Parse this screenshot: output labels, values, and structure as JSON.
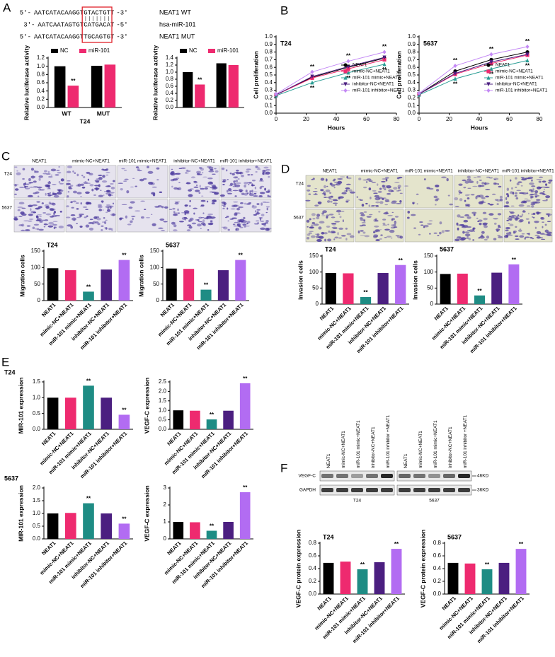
{
  "panel_labels": [
    "A",
    "B",
    "C",
    "D",
    "E",
    "F"
  ],
  "sequences": [
    {
      "left": "5'-",
      "pre": "AATCATACAAGGT",
      "site": "GTACTGT",
      "post": "T",
      "right": "-3'",
      "name": "NEAT1 WT"
    },
    {
      "left": "3'-",
      "pre": "AATCAATAGTGT",
      "site": "CATGACA",
      "post": "T",
      "right": "-5'",
      "name": "hsa-miR-101"
    },
    {
      "left": "5'-",
      "pre": "AATCATACAAGGT",
      "site": "TGCAGTG",
      "post": "T",
      "right": "-3'",
      "name": "NEAT1 MUT"
    }
  ],
  "micrographs": [
    {
      "columns": [
        "NEAT1",
        "mimic-NC+NEAT1",
        "miR-101 mimic+NEAT1",
        "inhibitor-NC+NEAT1",
        "miR-101 inhibitor+NEAT1"
      ],
      "rows": [
        "T24",
        "5637"
      ]
    },
    {
      "columns": [
        "NEAT1",
        "mimic-NC+NEAT1",
        "miR-101 mimic+NEAT1",
        "inhibitor-NC+NEAT1",
        "miR-101 inhibitor+NEAT1"
      ],
      "rows": [
        "T24",
        "5637"
      ]
    }
  ],
  "blot": {
    "lanes": [
      "NEAT1",
      "mimic-NC+NEAT1",
      "miR-101 mimic+NEAT1",
      "inhibitor-NC+NEAT1",
      "miR-101 inhibitor +NEAT1"
    ],
    "groups": [
      "T24",
      "5637"
    ],
    "bands": [
      "VEGF-C",
      "GAPDH"
    ],
    "sizes": [
      "46KD",
      "36KD"
    ]
  },
  "chart_data": [
    {
      "type": "grouped-bar",
      "ylabel": "Relative luciferase activity",
      "xlabel": "T24",
      "categories": [
        "WT",
        "MUT"
      ],
      "series": [
        {
          "name": "NC",
          "color": "#000000",
          "values": [
            1.0,
            1.01
          ],
          "annotations": [
            null,
            null
          ]
        },
        {
          "name": "miR-101",
          "color": "#ee2a6f",
          "values": [
            0.53,
            1.04
          ],
          "annotations": [
            "**",
            null
          ]
        }
      ],
      "ylim": [
        0,
        1.2
      ],
      "yticks": [
        {
          "value": 0,
          "label": "0.0"
        },
        0.2,
        0.4,
        0.6,
        0.8,
        {
          "value": 1,
          "label": "1.0"
        },
        1.2
      ],
      "legend": "upper left"
    },
    {
      "type": "grouped-bar",
      "ylabel": "Relative luciferase activity",
      "categories": [
        null,
        null
      ],
      "series": [
        {
          "name": "NC",
          "color": "#000000",
          "values": [
            1.0,
            1.25
          ],
          "annotations": [
            null,
            null
          ]
        },
        {
          "name": "miR-101",
          "color": "#ee2a6f",
          "values": [
            0.65,
            1.2
          ],
          "annotations": [
            "**",
            null
          ]
        }
      ],
      "ylim": [
        0,
        1.4
      ],
      "yticks": [
        {
          "value": 0,
          "label": "0.0"
        },
        0.2,
        0.4,
        0.6,
        0.8,
        {
          "value": 1,
          "label": "1.0"
        },
        1.2,
        1.4
      ],
      "legend": "upper left"
    },
    {
      "type": "line",
      "title": "T24",
      "xlabel": "Hours",
      "ylabel": "Cell proliferation",
      "x": [
        0,
        24,
        48,
        72
      ],
      "series": [
        {
          "name": "NEAT1",
          "color": "#000000",
          "marker": "circle",
          "values": [
            0.24,
            0.47,
            0.6,
            0.72
          ],
          "annotations": [
            null,
            null,
            null,
            null
          ]
        },
        {
          "name": "mimic-NC+NEAT1",
          "color": "#ee2a6f",
          "marker": "square",
          "values": [
            0.24,
            0.46,
            0.58,
            0.7
          ],
          "annotations": [
            null,
            null,
            null,
            null
          ]
        },
        {
          "name": "miR-101 mimic+NEAT1",
          "color": "#2a9d94",
          "marker": "triangle",
          "values": [
            0.23,
            0.4,
            0.53,
            0.64
          ],
          "annotations": [
            null,
            "**",
            "**",
            "**"
          ]
        },
        {
          "name": "inhibitor-NC+NEAT1",
          "color": "#4b1f80",
          "marker": "triangle-down",
          "values": [
            0.24,
            0.48,
            0.61,
            0.73
          ],
          "annotations": [
            null,
            null,
            null,
            null
          ]
        },
        {
          "name": "miR-101 inhibitor+NEAT1",
          "color": "#c48af5",
          "marker": "diamond",
          "values": [
            0.25,
            0.54,
            0.68,
            0.8
          ],
          "annotations": [
            null,
            "**",
            "**",
            "**"
          ]
        }
      ],
      "xlim": [
        0,
        80
      ],
      "xticks": [
        0,
        20,
        40,
        60,
        80
      ],
      "ylim": [
        0,
        1
      ],
      "yticks": [
        {
          "value": 0,
          "label": "0.0"
        },
        0.1,
        0.2,
        0.3,
        0.4,
        0.5,
        0.6,
        0.7,
        0.8,
        0.9,
        {
          "value": 1,
          "label": "1.0"
        }
      ],
      "legend": "lower right"
    },
    {
      "type": "line",
      "title": "5637",
      "xlabel": "Hours",
      "ylabel": "Cell proliferation",
      "x": [
        0,
        24,
        48,
        72
      ],
      "series": [
        {
          "name": "NEAT1",
          "color": "#000000",
          "marker": "circle",
          "values": [
            0.25,
            0.55,
            0.7,
            0.8
          ],
          "annotations": [
            null,
            null,
            null,
            null
          ]
        },
        {
          "name": "mimic-NC+NEAT1",
          "color": "#ee2a6f",
          "marker": "square",
          "values": [
            0.25,
            0.51,
            0.65,
            0.76
          ],
          "annotations": [
            null,
            null,
            null,
            null
          ]
        },
        {
          "name": "miR-101 mimic+NEAT1",
          "color": "#2a9d94",
          "marker": "triangle",
          "values": [
            0.24,
            0.45,
            0.58,
            0.69
          ],
          "annotations": [
            null,
            "**",
            "**",
            "**"
          ]
        },
        {
          "name": "inhibitor-NC+NEAT1",
          "color": "#4b1f80",
          "marker": "triangle-down",
          "values": [
            0.25,
            0.52,
            0.67,
            0.77
          ],
          "annotations": [
            null,
            null,
            null,
            null
          ]
        },
        {
          "name": "miR-101 inhibitor+NEAT1",
          "color": "#c48af5",
          "marker": "diamond",
          "values": [
            0.26,
            0.62,
            0.77,
            0.87
          ],
          "annotations": [
            null,
            "**",
            "**",
            "**"
          ]
        }
      ],
      "xlim": [
        0,
        80
      ],
      "xticks": [
        0,
        20,
        40,
        60,
        80
      ],
      "ylim": [
        0,
        1
      ],
      "yticks": [
        {
          "value": 0,
          "label": "0.0"
        },
        0.1,
        0.2,
        0.3,
        0.4,
        0.5,
        0.6,
        0.7,
        0.8,
        0.9,
        {
          "value": 1,
          "label": "1.0"
        }
      ],
      "legend": "lower right"
    },
    {
      "type": "bar",
      "title": "T24",
      "ylabel": "Migration cells",
      "categories": [
        "NEAT1",
        "mimic-NC+NEAT1",
        "miR-101 mimic+NEAT1",
        "inhibitor-NC+NEAT1",
        "miR-101 inhibitor+NEAT1"
      ],
      "values": [
        98,
        92,
        27,
        94,
        123
      ],
      "colors": [
        "#000000",
        "#ee2a6f",
        "#1e8c84",
        "#4b1f80",
        "#b26cf2"
      ],
      "annotations": [
        null,
        null,
        "**",
        null,
        "**"
      ],
      "ylim": [
        0,
        150
      ],
      "yticks": [
        0,
        50,
        100,
        150
      ]
    },
    {
      "type": "bar",
      "title": "5637",
      "ylabel": "Migration cells",
      "categories": [
        "NEAT1",
        "mimic-NC+NEAT1",
        "miR-101 mimic+NEAT1",
        "inhibitor-NC+NEAT1",
        "miR-101 inhibitor+NEAT1"
      ],
      "values": [
        97,
        96,
        33,
        92,
        123
      ],
      "colors": [
        "#000000",
        "#ee2a6f",
        "#1e8c84",
        "#4b1f80",
        "#b26cf2"
      ],
      "annotations": [
        null,
        null,
        "**",
        null,
        "**"
      ],
      "ylim": [
        0,
        150
      ],
      "yticks": [
        0,
        50,
        100,
        150
      ]
    },
    {
      "type": "bar",
      "title": "T24",
      "ylabel": "Invasion cells",
      "categories": [
        "NEAT1",
        "mimic-NC+NEAT1",
        "miR-101 mimic+NEAT1",
        "inhibitor-NC+NEAT1",
        "miR-101 inhibitor+NEAT1"
      ],
      "values": [
        97,
        96,
        22,
        97,
        122
      ],
      "colors": [
        "#000000",
        "#ee2a6f",
        "#1e8c84",
        "#4b1f80",
        "#b26cf2"
      ],
      "annotations": [
        null,
        null,
        "**",
        null,
        "**"
      ],
      "ylim": [
        0,
        150
      ],
      "yticks": [
        0,
        50,
        100,
        150
      ]
    },
    {
      "type": "bar",
      "title": "5637",
      "ylabel": "Invasion cells",
      "categories": [
        "NEAT1",
        "mimic-NC+NEAT1",
        "miR-101 mimic+NEAT1",
        "inhibitor-NC+NEAT1",
        "miR-101 inhibitor+NEAT1"
      ],
      "values": [
        94,
        95,
        27,
        98,
        124
      ],
      "colors": [
        "#000000",
        "#ee2a6f",
        "#1e8c84",
        "#4b1f80",
        "#b26cf2"
      ],
      "annotations": [
        null,
        null,
        "**",
        null,
        "**"
      ],
      "ylim": [
        0,
        150
      ],
      "yticks": [
        0,
        50,
        100,
        150
      ]
    },
    {
      "type": "bar",
      "title": "T24",
      "ylabel": "MIR-101 expression",
      "categories": [
        "NEAT1",
        "mimic-NC+NEAT1",
        "miR-101 mimic+NEAT1",
        "inhibitor-NC+NEAT1",
        "miR-101 inhibitor+NEAT1"
      ],
      "values": [
        1.0,
        1.0,
        1.38,
        1.0,
        0.46
      ],
      "colors": [
        "#000000",
        "#ee2a6f",
        "#1e8c84",
        "#4b1f80",
        "#b26cf2"
      ],
      "annotations": [
        null,
        null,
        "**",
        null,
        "**"
      ],
      "ylim": [
        0,
        1.5
      ],
      "yticks": [
        {
          "value": 0,
          "label": "0.0"
        },
        0.5,
        {
          "value": 1,
          "label": "1.0"
        },
        1.5
      ]
    },
    {
      "type": "bar",
      "ylabel": "VEGF-C expression",
      "categories": [
        "NEAT1",
        "mimic-NC+NEAT1",
        "miR-101 mimic+NEAT1",
        "inhibitor-NC+NEAT1",
        "miR-101 inhibitor+NEAT1"
      ],
      "values": [
        1.0,
        0.98,
        0.52,
        0.98,
        2.43
      ],
      "colors": [
        "#000000",
        "#ee2a6f",
        "#1e8c84",
        "#4b1f80",
        "#b26cf2"
      ],
      "annotations": [
        null,
        null,
        "**",
        null,
        "**"
      ],
      "ylim": [
        0,
        2.5
      ],
      "yticks": [
        {
          "value": 0,
          "label": "0.0"
        },
        0.5,
        {
          "value": 1,
          "label": "1.0"
        },
        1.5,
        {
          "value": 2,
          "label": "2.0"
        },
        2.5
      ]
    },
    {
      "type": "bar",
      "title": "5637",
      "ylabel": "MIR-101 expression",
      "categories": [
        "NEAT1",
        "mimic-NC+NEAT1",
        "miR-101 mimic+NEAT1",
        "inhibitor-NC+NEAT1",
        "miR-101 inhibitor+NEAT1"
      ],
      "values": [
        1.0,
        1.02,
        1.4,
        1.0,
        0.6
      ],
      "colors": [
        "#000000",
        "#ee2a6f",
        "#1e8c84",
        "#4b1f80",
        "#b26cf2"
      ],
      "annotations": [
        null,
        null,
        "**",
        null,
        "**"
      ],
      "ylim": [
        0,
        2
      ],
      "yticks": [
        {
          "value": 0,
          "label": "0.0"
        },
        0.5,
        {
          "value": 1,
          "label": "1.0"
        },
        1.5,
        {
          "value": 2,
          "label": "2.0"
        }
      ]
    },
    {
      "type": "bar",
      "ylabel": "VEGF-C expression",
      "categories": [
        "NEAT1",
        "mimic-NC+NEAT1",
        "miR-101 mimic+NEAT1",
        "inhibitor-NC+NEAT1",
        "miR-101 inhibitor+NEAT1"
      ],
      "values": [
        1.0,
        0.98,
        0.48,
        1.0,
        2.75
      ],
      "colors": [
        "#000000",
        "#ee2a6f",
        "#1e8c84",
        "#4b1f80",
        "#b26cf2"
      ],
      "annotations": [
        null,
        null,
        "**",
        null,
        "**"
      ],
      "ylim": [
        0,
        3
      ],
      "yticks": [
        0,
        1,
        2,
        3
      ]
    },
    {
      "type": "bar",
      "title": "T24",
      "ylabel": "VEGF-C protein expression",
      "categories": [
        "NEAT1",
        "mimic-NC+NEAT1",
        "miR-101 mimic+NEAT1",
        "inhibitor-NC+NEAT1",
        "miR-101 inhibitor+NEAT1"
      ],
      "values": [
        0.49,
        0.51,
        0.39,
        0.5,
        0.71
      ],
      "colors": [
        "#000000",
        "#ee2a6f",
        "#1e8c84",
        "#4b1f80",
        "#b26cf2"
      ],
      "annotations": [
        null,
        null,
        "**",
        null,
        "**"
      ],
      "ylim": [
        0,
        0.8
      ],
      "yticks": [
        {
          "value": 0,
          "label": "0.0"
        },
        0.2,
        0.4,
        0.6,
        0.8
      ]
    },
    {
      "type": "bar",
      "title": "5637",
      "ylabel": "VEGF-C protein expression",
      "categories": [
        "NEAT1",
        "mimic-NC+NEAT1",
        "miR-101 mimic+NEAT1",
        "inhibitor-NC+NEAT1",
        "miR-101 inhibitor+NEAT1"
      ],
      "values": [
        0.49,
        0.48,
        0.39,
        0.49,
        0.71
      ],
      "colors": [
        "#000000",
        "#ee2a6f",
        "#1e8c84",
        "#4b1f80",
        "#b26cf2"
      ],
      "annotations": [
        null,
        null,
        "**",
        null,
        "**"
      ],
      "ylim": [
        0,
        0.8
      ],
      "yticks": [
        {
          "value": 0,
          "label": "0.0"
        },
        0.2,
        0.4,
        0.6,
        0.8
      ]
    }
  ]
}
